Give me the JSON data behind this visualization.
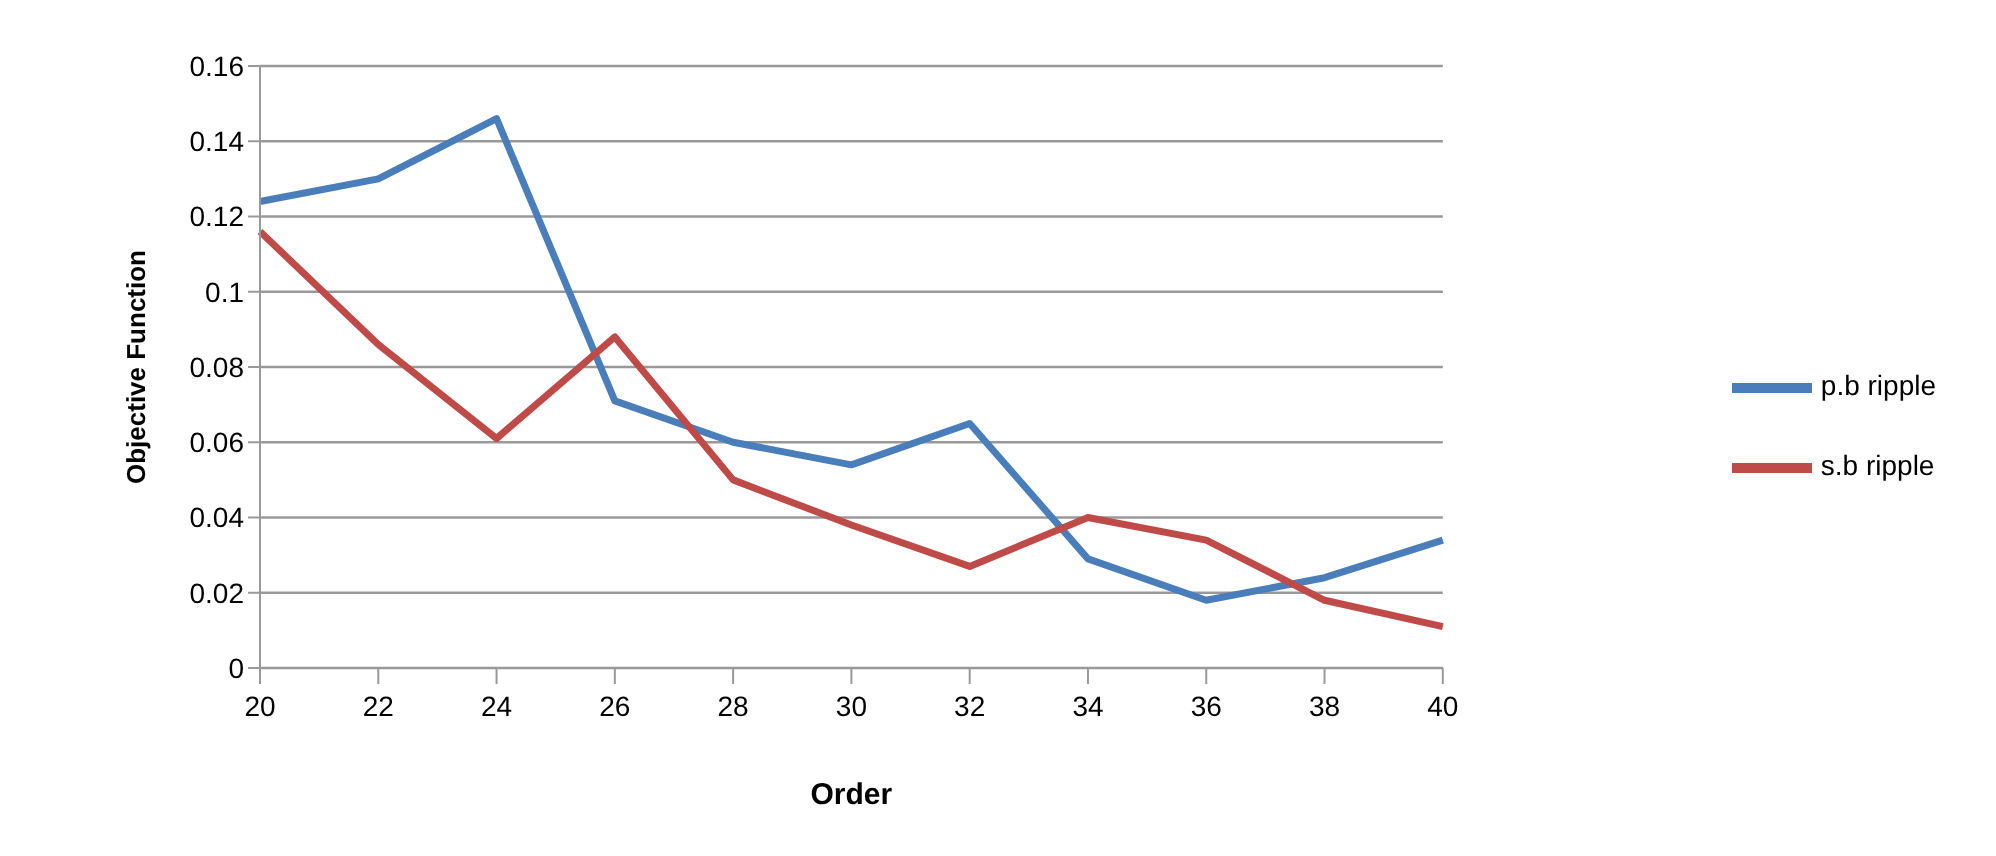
{
  "chart_data": {
    "type": "line",
    "xlabel": "Order",
    "ylabel": "Objective Function",
    "categories": [
      "20",
      "22",
      "24",
      "26",
      "28",
      "30",
      "32",
      "34",
      "36",
      "38",
      "40"
    ],
    "series": [
      {
        "name": "p.b ripple",
        "color": "#4a7ebb",
        "values": [
          0.124,
          0.13,
          0.146,
          0.071,
          0.06,
          0.054,
          0.065,
          0.029,
          0.018,
          0.024,
          0.034
        ]
      },
      {
        "name": "s.b ripple",
        "color": "#be4b48",
        "values": [
          0.116,
          0.086,
          0.061,
          0.088,
          0.05,
          0.038,
          0.027,
          0.04,
          0.034,
          0.018,
          0.011
        ]
      }
    ],
    "ylim": [
      0,
      0.16
    ],
    "yticks": [
      0,
      0.02,
      0.04,
      0.06,
      0.08,
      0.1,
      0.12,
      0.14,
      0.16
    ],
    "grid": "y",
    "legend": "right",
    "marker": "none",
    "line_style": "solid"
  }
}
